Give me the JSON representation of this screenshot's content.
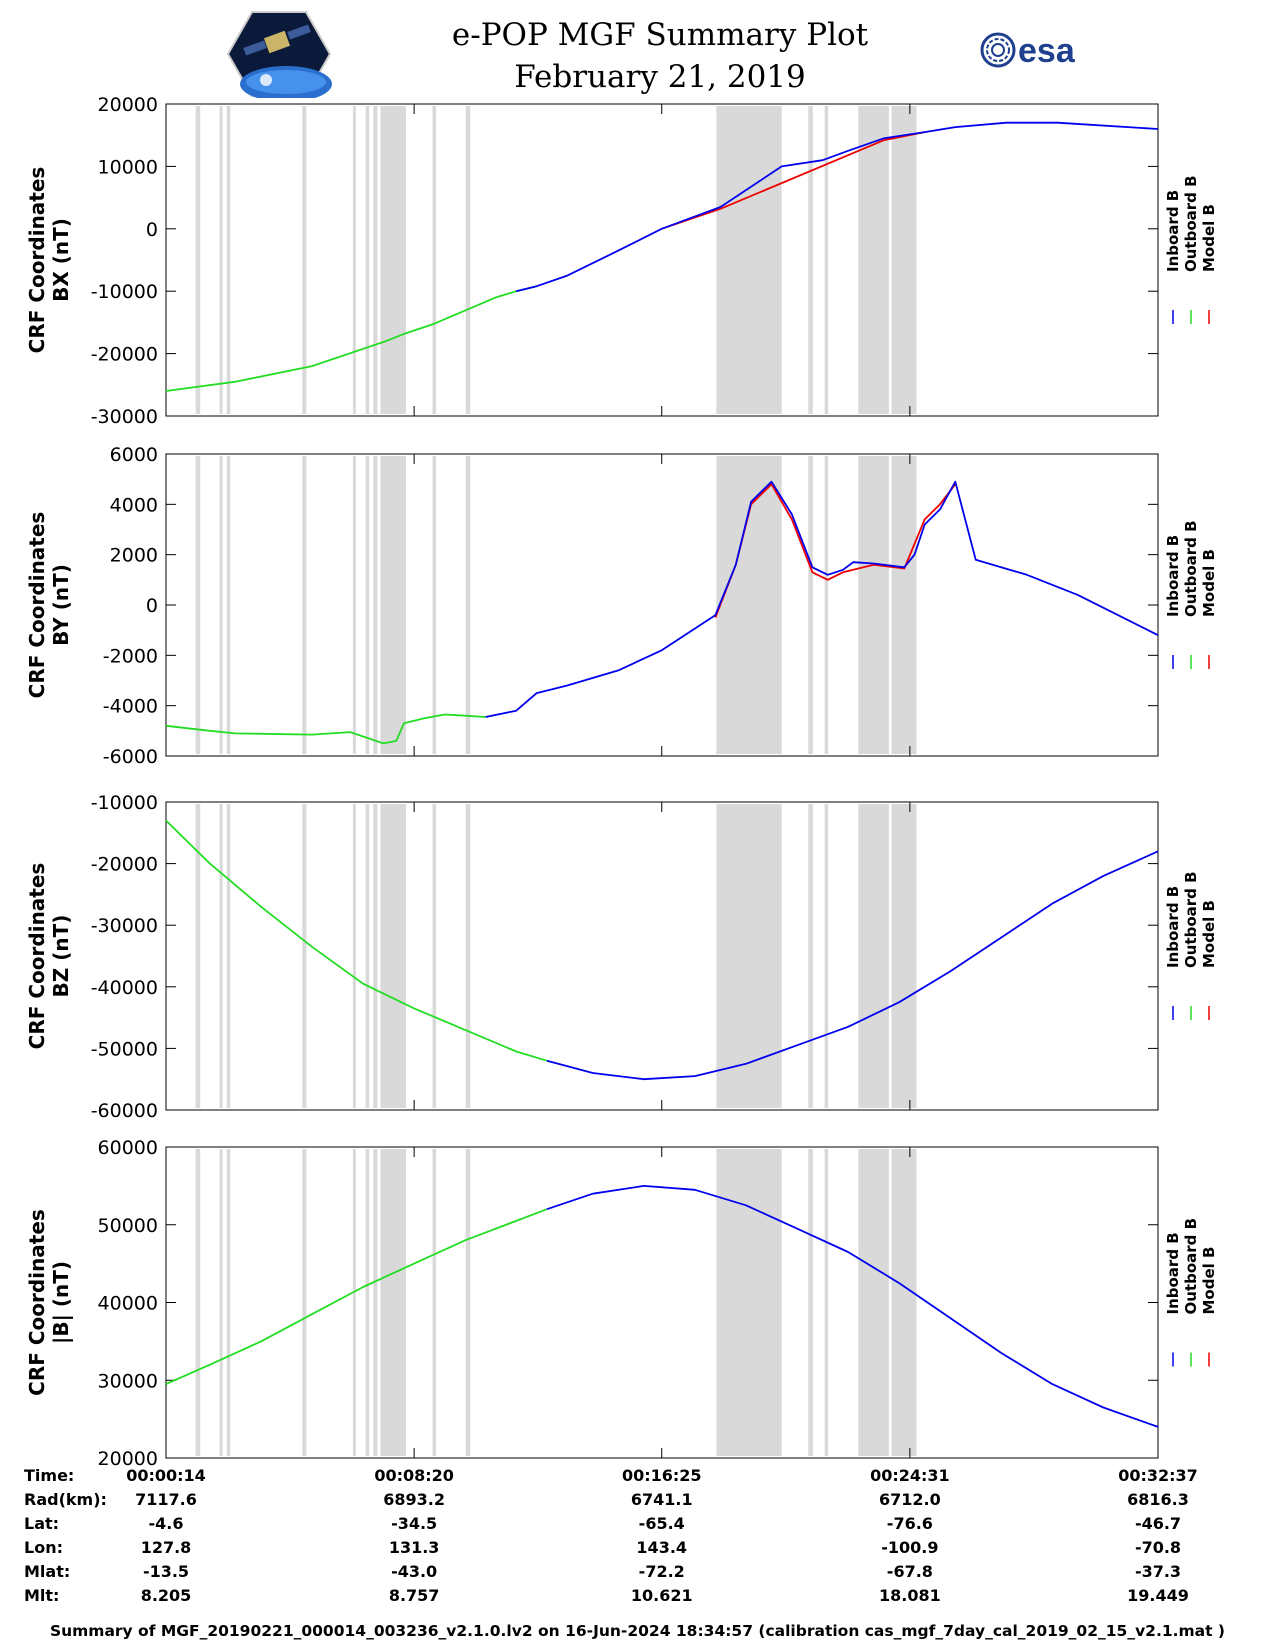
{
  "header": {
    "title": "e-POP MGF Summary Plot",
    "date": "February 21, 2019",
    "logo_left_icon": "cassiope-mission-logo",
    "logo_right_icon": "esa-logo",
    "logo_right_text": "esa"
  },
  "colors": {
    "inboard": "#0000ee",
    "outboard": "#22dd22",
    "model": "#ee0000",
    "gap": "#d9d9d9"
  },
  "chart_data": {
    "type": "line",
    "x_range_s": [
      14,
      1957
    ],
    "x_tick_seconds": [
      14,
      500,
      985,
      1471,
      1957
    ],
    "legend": [
      "Inboard B",
      "Outboard B",
      "Model B"
    ],
    "gap_intervals_s": [
      [
        72,
        81
      ],
      [
        119,
        124
      ],
      [
        133,
        140
      ],
      [
        281,
        289
      ],
      [
        380,
        385
      ],
      [
        405,
        412
      ],
      [
        420,
        428
      ],
      [
        434,
        484
      ],
      [
        536,
        543
      ],
      [
        601,
        610
      ],
      [
        1092,
        1220
      ],
      [
        1272,
        1281
      ],
      [
        1304,
        1311
      ],
      [
        1370,
        1430
      ],
      [
        1435,
        1484
      ]
    ],
    "panels": [
      {
        "ylabel_line1": "CRF Coordinates",
        "ylabel_line2": "BX (nT)",
        "ylim": [
          -30000,
          20000
        ],
        "y_ticks": [
          20000,
          10000,
          0,
          -10000,
          -20000,
          -30000
        ],
        "outboard": {
          "x": [
            14,
            150,
            300,
            445,
            482,
            540,
            660,
            700,
            740
          ],
          "y": [
            -26000,
            -24500,
            -22000,
            -18000,
            -16800,
            -15200,
            -11000,
            -10000,
            -9200
          ]
        },
        "inboard": {
          "x": [
            700,
            740,
            800,
            900,
            985,
            1100,
            1220,
            1300,
            1350,
            1420,
            1500,
            1560,
            1660,
            1760,
            1957
          ],
          "y": [
            -10000,
            -9200,
            -7500,
            -3500,
            0,
            3500,
            10000,
            11000,
            12500,
            14500,
            15500,
            16300,
            17000,
            17000,
            16000
          ]
        },
        "model": {
          "x": [
            985,
            1100,
            1420,
            1500
          ],
          "y": [
            0,
            3200,
            14200,
            15500
          ]
        }
      },
      {
        "ylabel_line1": "CRF Coordinates",
        "ylabel_line2": "BY (nT)",
        "ylim": [
          -6000,
          6000
        ],
        "y_ticks": [
          6000,
          4000,
          2000,
          0,
          -2000,
          -4000,
          -6000
        ],
        "outboard": {
          "x": [
            14,
            100,
            150,
            300,
            375,
            440,
            465,
            480,
            520,
            560,
            600,
            640
          ],
          "y": [
            -4800,
            -5000,
            -5100,
            -5150,
            -5050,
            -5500,
            -5400,
            -4700,
            -4500,
            -4350,
            -4400,
            -4450
          ]
        },
        "inboard": {
          "x": [
            640,
            700,
            740,
            800,
            900,
            985,
            1090,
            1130,
            1160,
            1200,
            1240,
            1280,
            1310,
            1340,
            1360,
            1400,
            1460,
            1480,
            1500,
            1530,
            1560,
            1600,
            1700,
            1800,
            1957
          ],
          "y": [
            -4450,
            -4200,
            -3500,
            -3200,
            -2600,
            -1800,
            -400,
            1600,
            4100,
            4900,
            3600,
            1500,
            1200,
            1400,
            1700,
            1650,
            1500,
            2000,
            3200,
            3800,
            4900,
            1800,
            1200,
            400,
            -1200
          ]
        },
        "model": {
          "x": [
            1090,
            1130,
            1160,
            1200,
            1240,
            1280,
            1310,
            1340,
            1400,
            1460,
            1500,
            1530,
            1560
          ],
          "y": [
            -500,
            1600,
            4000,
            4800,
            3400,
            1300,
            1000,
            1300,
            1600,
            1450,
            3400,
            4000,
            4800
          ]
        }
      },
      {
        "ylabel_line1": "CRF Coordinates",
        "ylabel_line2": "BZ (nT)",
        "ylim": [
          -60000,
          -10000
        ],
        "y_ticks": [
          -10000,
          -20000,
          -30000,
          -40000,
          -50000,
          -60000
        ],
        "outboard": {
          "x": [
            14,
            100,
            200,
            300,
            400,
            500,
            600,
            700,
            760
          ],
          "y": [
            -13000,
            -20000,
            -27000,
            -33500,
            -39500,
            -43500,
            -47000,
            -50500,
            -52000
          ]
        },
        "inboard": {
          "x": [
            760,
            850,
            950,
            1050,
            1150,
            1250,
            1350,
            1450,
            1550,
            1650,
            1750,
            1850,
            1957
          ],
          "y": [
            -52000,
            -54000,
            -55000,
            -54500,
            -52500,
            -49500,
            -46500,
            -42500,
            -37500,
            -32000,
            -26500,
            -22000,
            -18000
          ]
        },
        "model": {
          "x": [],
          "y": []
        }
      },
      {
        "ylabel_line1": "CRF Coordinates",
        "ylabel_line2": "|B| (nT)",
        "ylim": [
          20000,
          60000
        ],
        "y_ticks": [
          60000,
          50000,
          40000,
          30000,
          20000
        ],
        "outboard": {
          "x": [
            14,
            100,
            200,
            300,
            400,
            500,
            600,
            700,
            760
          ],
          "y": [
            29500,
            32000,
            35000,
            38500,
            42000,
            45000,
            48000,
            50500,
            52000
          ]
        },
        "inboard": {
          "x": [
            760,
            850,
            950,
            1050,
            1150,
            1250,
            1350,
            1450,
            1550,
            1650,
            1750,
            1850,
            1957
          ],
          "y": [
            52000,
            54000,
            55000,
            54500,
            52500,
            49500,
            46500,
            42500,
            38000,
            33500,
            29500,
            26500,
            24000
          ]
        },
        "model": {
          "x": [],
          "y": []
        }
      }
    ]
  },
  "info": {
    "row_labels": [
      "Time:",
      "Rad(km):",
      "Lat:",
      "Lon:",
      "Mlat:",
      "Mlt:"
    ],
    "columns": [
      [
        "00:00:14",
        "7117.6",
        "-4.6",
        "127.8",
        "-13.5",
        "8.205"
      ],
      [
        "00:08:20",
        "6893.2",
        "-34.5",
        "131.3",
        "-43.0",
        "8.757"
      ],
      [
        "00:16:25",
        "6741.1",
        "-65.4",
        "143.4",
        "-72.2",
        "10.621"
      ],
      [
        "00:24:31",
        "6712.0",
        "-76.6",
        "-100.9",
        "-67.8",
        "18.081"
      ],
      [
        "00:32:37",
        "6816.3",
        "-46.7",
        "-70.8",
        "-37.3",
        "19.449"
      ]
    ]
  },
  "footer": "Summary of MGF_20190221_000014_003236_v2.1.0.lv2 on 16-Jun-2024 18:34:57 (calibration cas_mgf_7day_cal_2019_02_15_v2.1.mat )"
}
